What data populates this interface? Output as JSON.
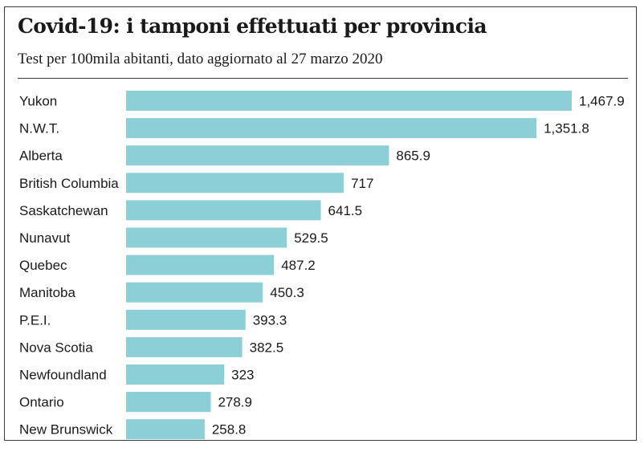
{
  "chart_data": {
    "type": "bar",
    "orientation": "horizontal",
    "title": "Covid-19: i tamponi effettuati per provincia",
    "subtitle": "Test per 100mila abitanti, dato aggiornato al 27 marzo 2020",
    "categories": [
      "Yukon",
      "N.W.T.",
      "Alberta",
      "British Columbia",
      "Saskatchewan",
      "Nunavut",
      "Quebec",
      "Manitoba",
      "P.E.I.",
      "Nova Scotia",
      "Newfoundland",
      "Ontario",
      "New Brunswick"
    ],
    "values": [
      1467.9,
      1351.8,
      865.9,
      717,
      641.5,
      529.5,
      487.2,
      450.3,
      393.3,
      382.5,
      323,
      278.9,
      258.8
    ],
    "value_labels": [
      "1,467.9",
      "1,351.8",
      "865.9",
      "717",
      "641.5",
      "529.5",
      "487.2",
      "450.3",
      "393.3",
      "382.5",
      "323",
      "278.9",
      "258.8"
    ],
    "bar_color": "#8ccfd6",
    "grid": false,
    "legend": "none"
  }
}
